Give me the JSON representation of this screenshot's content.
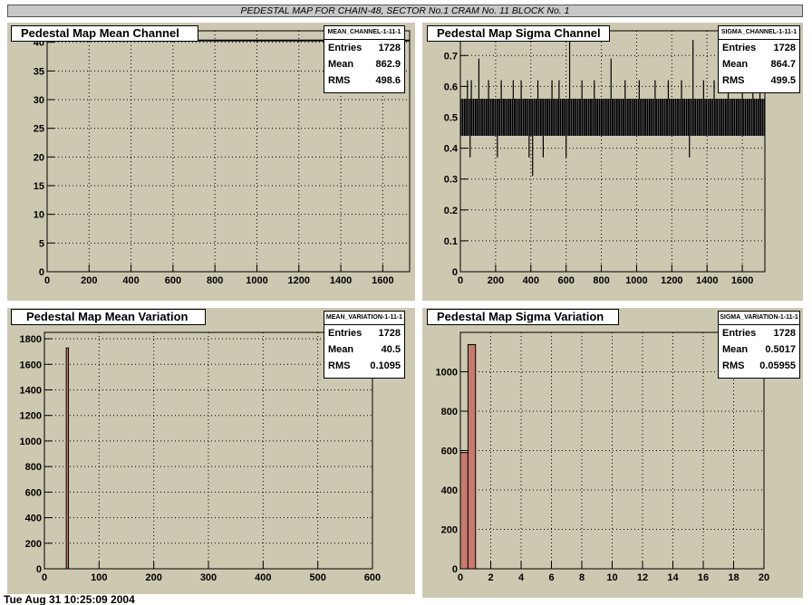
{
  "header_title": "PEDESTAL MAP FOR CHAIN-48, SECTOR No.1 CRAM No. 11 BLOCK No. 1",
  "footer_text": "Tue Aug 31 10:25:09 2004",
  "colors": {
    "pad_bg": "#cdc8b0",
    "hist_fill": "#c87a6e",
    "line": "#000000"
  },
  "chart_data": [
    {
      "type": "line",
      "title": "Pedestal Map Mean Channel",
      "stats": {
        "name": "MEAN_CHANNEL-1-11-1",
        "entries": "1728",
        "mean": "862.9",
        "rms": "498.6"
      },
      "xlim": [
        0,
        1728
      ],
      "ylim": [
        0,
        42
      ],
      "xticks": [
        0,
        200,
        400,
        600,
        800,
        1000,
        1200,
        1400,
        1600
      ],
      "yticks": [
        0,
        5,
        10,
        15,
        20,
        25,
        30,
        35,
        40
      ],
      "series": [
        {
          "x": [
            0,
            1728
          ],
          "values": [
            40.3,
            40.3
          ]
        }
      ]
    },
    {
      "type": "line",
      "title": "Pedestal Map Sigma Channel",
      "stats": {
        "name": "SIGMA_CHANNEL-1-11-1",
        "entries": "1728",
        "mean": "864.7",
        "rms": "499.5"
      },
      "xlim": [
        0,
        1728
      ],
      "ylim": [
        0,
        0.78
      ],
      "xticks": [
        0,
        200,
        400,
        600,
        800,
        1000,
        1200,
        1400,
        1600
      ],
      "yticks": [
        0,
        0.1,
        0.2,
        0.3,
        0.4,
        0.5,
        0.6,
        0.7
      ],
      "band": [
        0.44,
        0.56
      ],
      "spikes_high": [
        [
          40,
          0.62
        ],
        [
          62,
          0.62
        ],
        [
          105,
          0.69
        ],
        [
          160,
          0.62
        ],
        [
          232,
          0.62
        ],
        [
          300,
          0.62
        ],
        [
          345,
          0.62
        ],
        [
          440,
          0.62
        ],
        [
          520,
          0.62
        ],
        [
          560,
          0.62
        ],
        [
          620,
          0.75
        ],
        [
          690,
          0.62
        ],
        [
          760,
          0.62
        ],
        [
          855,
          0.69
        ],
        [
          935,
          0.62
        ],
        [
          1015,
          0.62
        ],
        [
          1105,
          0.62
        ],
        [
          1180,
          0.62
        ],
        [
          1255,
          0.62
        ],
        [
          1320,
          0.75
        ],
        [
          1380,
          0.62
        ],
        [
          1440,
          0.62
        ],
        [
          1520,
          0.62
        ],
        [
          1600,
          0.69
        ],
        [
          1660,
          0.62
        ],
        [
          1700,
          0.62
        ]
      ],
      "spikes_low": [
        [
          55,
          0.37
        ],
        [
          210,
          0.37
        ],
        [
          390,
          0.37
        ],
        [
          410,
          0.31
        ],
        [
          470,
          0.37
        ],
        [
          600,
          0.37
        ],
        [
          1300,
          0.37
        ]
      ]
    },
    {
      "type": "bar",
      "title": "Pedestal Map Mean Variation",
      "stats": {
        "name": "MEAN_VARIATION-1-11-1",
        "entries": "1728",
        "mean": "40.5",
        "rms": "0.1095"
      },
      "xlim": [
        0,
        600
      ],
      "ylim": [
        0,
        1850
      ],
      "xticks": [
        0,
        100,
        200,
        300,
        400,
        500,
        600
      ],
      "yticks": [
        0,
        200,
        400,
        600,
        800,
        1000,
        1200,
        1400,
        1600,
        1800
      ],
      "bins": [
        {
          "x0": 40,
          "x1": 44,
          "value": 1728
        }
      ]
    },
    {
      "type": "bar",
      "title": "Pedestal Map Sigma Variation",
      "stats": {
        "name": "SIGMA_VARIATION-1-11-1",
        "entries": "1728",
        "mean": "0.5017",
        "rms": "0.05955"
      },
      "xlim": [
        0,
        20
      ],
      "ylim": [
        0,
        1200
      ],
      "xticks": [
        0,
        2,
        4,
        6,
        8,
        10,
        12,
        14,
        16,
        18,
        20
      ],
      "yticks": [
        0,
        200,
        400,
        600,
        800,
        1000
      ],
      "bins": [
        {
          "x0": 0,
          "x1": 0.5,
          "value": 590
        },
        {
          "x0": 0.5,
          "x1": 1.0,
          "value": 1138
        }
      ]
    }
  ]
}
